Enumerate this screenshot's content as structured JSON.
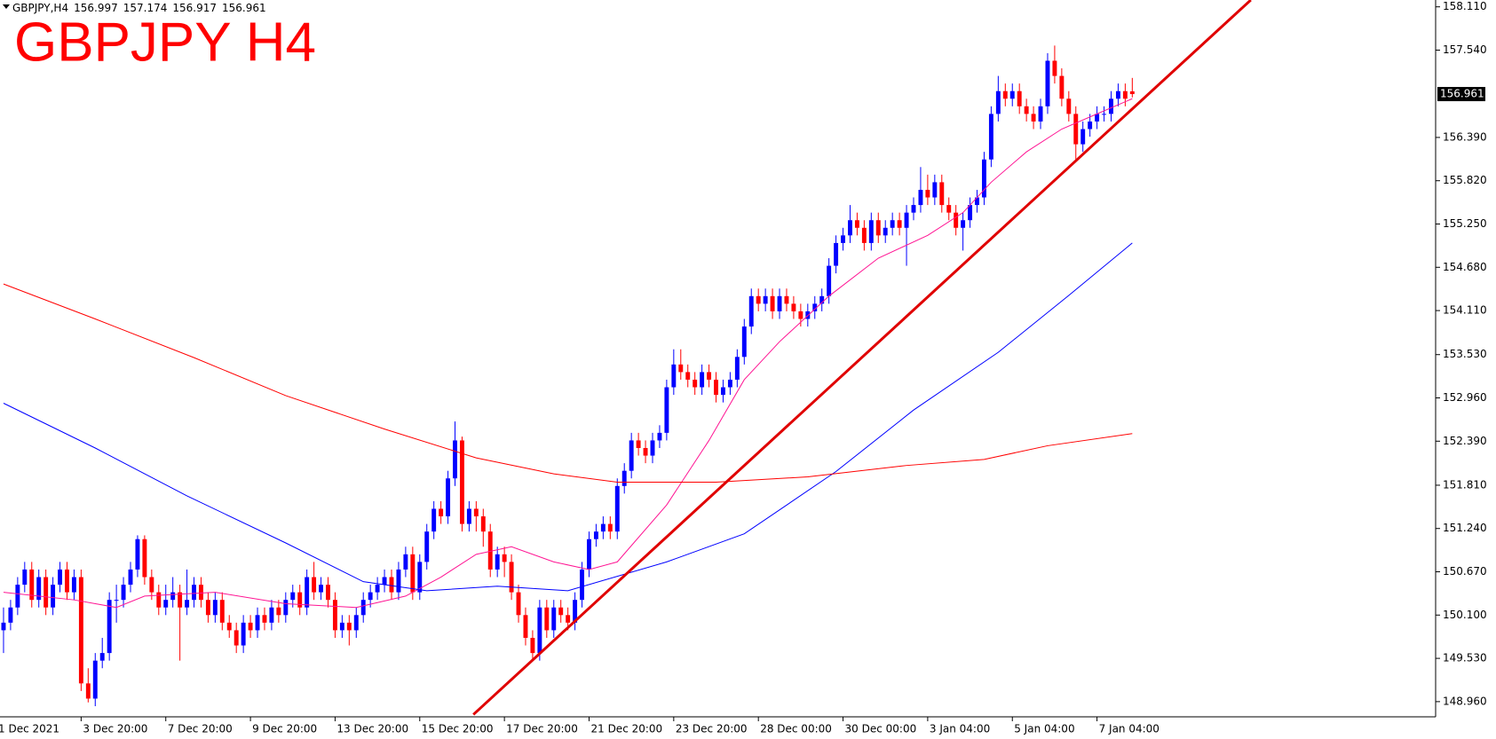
{
  "chart_data": {
    "type": "candlestick",
    "title": "GBPJPY H4",
    "symbol": "GBPJPY,H4",
    "up_color": "#0000ff",
    "down_color": "#ff0000",
    "xlim": [
      -0.5,
      203
    ],
    "ylim": [
      148.76,
      158.2
    ],
    "yticks": [
      {
        "value": 148.96,
        "label": "148.960"
      },
      {
        "value": 149.53,
        "label": "149.530"
      },
      {
        "value": 150.1,
        "label": "150.100"
      },
      {
        "value": 150.67,
        "label": "150.670"
      },
      {
        "value": 151.24,
        "label": "151.240"
      },
      {
        "value": 151.81,
        "label": "151.810"
      },
      {
        "value": 152.39,
        "label": "152.390"
      },
      {
        "value": 152.96,
        "label": "152.960"
      },
      {
        "value": 153.53,
        "label": "153.530"
      },
      {
        "value": 154.11,
        "label": "154.110"
      },
      {
        "value": 154.68,
        "label": "154.680"
      },
      {
        "value": 155.25,
        "label": "155.250"
      },
      {
        "value": 155.82,
        "label": "155.820"
      },
      {
        "value": 156.39,
        "label": "156.390"
      },
      {
        "value": 157.54,
        "label": "157.540"
      },
      {
        "value": 158.11,
        "label": "158.110"
      }
    ],
    "xticks": [
      {
        "value": -1,
        "label": "1 Dec 2021"
      },
      {
        "value": 11,
        "label": "3 Dec 20:00"
      },
      {
        "value": 23,
        "label": "7 Dec 20:00"
      },
      {
        "value": 35,
        "label": "9 Dec 20:00"
      },
      {
        "value": 47,
        "label": "13 Dec 20:00"
      },
      {
        "value": 59,
        "label": "15 Dec 20:00"
      },
      {
        "value": 71,
        "label": "17 Dec 20:00"
      },
      {
        "value": 83,
        "label": "21 Dec 20:00"
      },
      {
        "value": 95,
        "label": "23 Dec 20:00"
      },
      {
        "value": 107,
        "label": "28 Dec 00:00"
      },
      {
        "value": 119,
        "label": "30 Dec 00:00"
      },
      {
        "value": 131,
        "label": "3 Jan 04:00"
      },
      {
        "value": 143,
        "label": "5 Jan 04:00"
      },
      {
        "value": 155,
        "label": "7 Jan 04:00"
      }
    ],
    "ohlc": [
      [
        149.9,
        150.2,
        149.6,
        150.0
      ],
      [
        150.0,
        150.3,
        149.9,
        150.2
      ],
      [
        150.2,
        150.6,
        150.1,
        150.5
      ],
      [
        150.5,
        150.8,
        150.4,
        150.7
      ],
      [
        150.7,
        150.8,
        150.2,
        150.3
      ],
      [
        150.3,
        150.7,
        150.2,
        150.6
      ],
      [
        150.6,
        150.7,
        150.1,
        150.2
      ],
      [
        150.2,
        150.6,
        150.1,
        150.5
      ],
      [
        150.5,
        150.8,
        150.4,
        150.7
      ],
      [
        150.7,
        150.8,
        150.3,
        150.4
      ],
      [
        150.4,
        150.7,
        150.3,
        150.6
      ],
      [
        150.6,
        150.7,
        149.1,
        149.2
      ],
      [
        149.2,
        149.4,
        148.95,
        149.0
      ],
      [
        149.0,
        149.6,
        148.9,
        149.5
      ],
      [
        149.5,
        149.8,
        149.4,
        149.6
      ],
      [
        149.6,
        150.4,
        149.5,
        150.3
      ],
      [
        150.3,
        150.5,
        150.0,
        150.3
      ],
      [
        150.3,
        150.6,
        150.2,
        150.5
      ],
      [
        150.5,
        150.8,
        150.4,
        150.7
      ],
      [
        150.7,
        151.15,
        150.6,
        151.1
      ],
      [
        151.1,
        151.15,
        150.5,
        150.6
      ],
      [
        150.6,
        150.7,
        150.3,
        150.4
      ],
      [
        150.4,
        150.5,
        150.1,
        150.2
      ],
      [
        150.2,
        150.5,
        150.1,
        150.3
      ],
      [
        150.3,
        150.6,
        150.2,
        150.4
      ],
      [
        150.4,
        150.5,
        149.5,
        150.2
      ],
      [
        150.2,
        150.7,
        150.1,
        150.3
      ],
      [
        150.3,
        150.6,
        150.2,
        150.5
      ],
      [
        150.5,
        150.6,
        150.2,
        150.3
      ],
      [
        150.3,
        150.4,
        150.0,
        150.1
      ],
      [
        150.1,
        150.4,
        150.0,
        150.3
      ],
      [
        150.3,
        150.4,
        149.9,
        150.0
      ],
      [
        150.0,
        150.1,
        149.8,
        149.9
      ],
      [
        149.9,
        150.0,
        149.6,
        149.7
      ],
      [
        149.7,
        150.1,
        149.6,
        150.0
      ],
      [
        150.0,
        150.1,
        149.8,
        149.9
      ],
      [
        149.9,
        150.2,
        149.8,
        150.1
      ],
      [
        150.1,
        150.2,
        149.9,
        150.0
      ],
      [
        150.0,
        150.3,
        149.9,
        150.2
      ],
      [
        150.2,
        150.3,
        150.0,
        150.1
      ],
      [
        150.1,
        150.4,
        150.0,
        150.3
      ],
      [
        150.3,
        150.5,
        150.2,
        150.4
      ],
      [
        150.4,
        150.5,
        150.1,
        150.2
      ],
      [
        150.2,
        150.7,
        150.1,
        150.6
      ],
      [
        150.6,
        150.8,
        150.3,
        150.4
      ],
      [
        150.4,
        150.6,
        150.3,
        150.5
      ],
      [
        150.5,
        150.6,
        150.2,
        150.3
      ],
      [
        150.3,
        150.4,
        149.8,
        149.9
      ],
      [
        149.9,
        150.1,
        149.8,
        150.0
      ],
      [
        150.0,
        150.1,
        149.7,
        149.9
      ],
      [
        149.9,
        150.2,
        149.8,
        150.1
      ],
      [
        150.1,
        150.4,
        150.0,
        150.3
      ],
      [
        150.3,
        150.5,
        150.2,
        150.4
      ],
      [
        150.4,
        150.6,
        150.3,
        150.5
      ],
      [
        150.5,
        150.7,
        150.4,
        150.6
      ],
      [
        150.6,
        150.7,
        150.3,
        150.4
      ],
      [
        150.4,
        150.8,
        150.3,
        150.7
      ],
      [
        150.7,
        151.0,
        150.6,
        150.9
      ],
      [
        150.9,
        151.0,
        150.3,
        150.4
      ],
      [
        150.4,
        150.9,
        150.3,
        150.8
      ],
      [
        150.8,
        151.3,
        150.7,
        151.2
      ],
      [
        151.2,
        151.6,
        151.1,
        151.5
      ],
      [
        151.5,
        151.6,
        151.3,
        151.4
      ],
      [
        151.4,
        152.0,
        151.3,
        151.9
      ],
      [
        151.9,
        152.65,
        151.8,
        152.4
      ],
      [
        152.4,
        152.45,
        151.2,
        151.3
      ],
      [
        151.3,
        151.6,
        151.2,
        151.5
      ],
      [
        151.5,
        151.6,
        151.2,
        151.4
      ],
      [
        151.4,
        151.5,
        151.0,
        151.2
      ],
      [
        151.2,
        151.3,
        150.6,
        150.7
      ],
      [
        150.7,
        151.0,
        150.6,
        150.9
      ],
      [
        150.9,
        151.0,
        150.6,
        150.8
      ],
      [
        150.8,
        150.9,
        150.3,
        150.4
      ],
      [
        150.4,
        150.5,
        150.0,
        150.1
      ],
      [
        150.1,
        150.2,
        149.7,
        149.8
      ],
      [
        149.8,
        149.9,
        149.5,
        149.6
      ],
      [
        149.6,
        150.3,
        149.5,
        150.2
      ],
      [
        150.2,
        150.3,
        149.8,
        149.9
      ],
      [
        149.9,
        150.3,
        149.8,
        150.2
      ],
      [
        150.2,
        150.3,
        150.0,
        150.1
      ],
      [
        150.1,
        150.2,
        149.9,
        150.0
      ],
      [
        150.0,
        150.4,
        149.9,
        150.3
      ],
      [
        150.3,
        150.8,
        150.2,
        150.7
      ],
      [
        150.7,
        151.2,
        150.6,
        151.1
      ],
      [
        151.1,
        151.3,
        151.0,
        151.2
      ],
      [
        151.2,
        151.4,
        151.1,
        151.3
      ],
      [
        151.3,
        151.4,
        151.1,
        151.2
      ],
      [
        151.2,
        151.9,
        151.1,
        151.8
      ],
      [
        151.8,
        152.1,
        151.7,
        152.0
      ],
      [
        152.0,
        152.5,
        151.9,
        152.4
      ],
      [
        152.4,
        152.5,
        152.2,
        152.3
      ],
      [
        152.3,
        152.4,
        152.1,
        152.2
      ],
      [
        152.2,
        152.5,
        152.1,
        152.4
      ],
      [
        152.4,
        152.6,
        152.3,
        152.5
      ],
      [
        152.5,
        153.2,
        152.4,
        153.1
      ],
      [
        153.1,
        153.6,
        153.0,
        153.4
      ],
      [
        153.4,
        153.6,
        153.2,
        153.3
      ],
      [
        153.3,
        153.4,
        153.1,
        153.2
      ],
      [
        153.2,
        153.3,
        153.0,
        153.1
      ],
      [
        153.1,
        153.4,
        153.0,
        153.3
      ],
      [
        153.3,
        153.4,
        153.1,
        153.2
      ],
      [
        153.2,
        153.3,
        152.9,
        153.0
      ],
      [
        153.0,
        153.2,
        152.9,
        153.1
      ],
      [
        153.1,
        153.3,
        153.0,
        153.2
      ],
      [
        153.2,
        153.6,
        153.1,
        153.5
      ],
      [
        153.5,
        154.0,
        153.4,
        153.9
      ],
      [
        153.9,
        154.4,
        153.8,
        154.3
      ],
      [
        154.3,
        154.4,
        154.1,
        154.2
      ],
      [
        154.2,
        154.4,
        154.1,
        154.3
      ],
      [
        154.3,
        154.4,
        154.0,
        154.1
      ],
      [
        154.1,
        154.4,
        154.0,
        154.3
      ],
      [
        154.3,
        154.4,
        154.1,
        154.2
      ],
      [
        154.2,
        154.3,
        154.0,
        154.1
      ],
      [
        154.1,
        154.2,
        153.9,
        154.0
      ],
      [
        154.0,
        154.2,
        153.9,
        154.1
      ],
      [
        154.1,
        154.3,
        154.0,
        154.2
      ],
      [
        154.2,
        154.4,
        154.1,
        154.3
      ],
      [
        154.3,
        154.8,
        154.2,
        154.7
      ],
      [
        154.7,
        155.1,
        154.6,
        155.0
      ],
      [
        155.0,
        155.2,
        154.9,
        155.1
      ],
      [
        155.1,
        155.5,
        155.0,
        155.3
      ],
      [
        155.3,
        155.4,
        155.1,
        155.2
      ],
      [
        155.2,
        155.3,
        154.9,
        155.0
      ],
      [
        155.0,
        155.4,
        154.9,
        155.3
      ],
      [
        155.3,
        155.4,
        155.0,
        155.1
      ],
      [
        155.1,
        155.3,
        155.0,
        155.2
      ],
      [
        155.2,
        155.4,
        155.1,
        155.3
      ],
      [
        155.3,
        155.4,
        155.1,
        155.2
      ],
      [
        155.2,
        155.5,
        154.7,
        155.4
      ],
      [
        155.4,
        155.6,
        155.3,
        155.5
      ],
      [
        155.5,
        156.0,
        155.4,
        155.7
      ],
      [
        155.7,
        155.9,
        155.5,
        155.6
      ],
      [
        155.6,
        155.9,
        155.5,
        155.8
      ],
      [
        155.8,
        155.9,
        155.4,
        155.5
      ],
      [
        155.5,
        155.6,
        155.3,
        155.4
      ],
      [
        155.4,
        155.5,
        155.1,
        155.2
      ],
      [
        155.2,
        155.4,
        154.9,
        155.3
      ],
      [
        155.3,
        155.6,
        155.2,
        155.5
      ],
      [
        155.5,
        155.7,
        155.4,
        155.6
      ],
      [
        155.6,
        156.2,
        155.5,
        156.1
      ],
      [
        156.1,
        156.8,
        156.0,
        156.7
      ],
      [
        156.7,
        157.2,
        156.6,
        157.0
      ],
      [
        157.0,
        157.1,
        156.8,
        156.9
      ],
      [
        156.9,
        157.1,
        156.8,
        157.0
      ],
      [
        157.0,
        157.1,
        156.7,
        156.8
      ],
      [
        156.8,
        156.9,
        156.6,
        156.7
      ],
      [
        156.7,
        156.8,
        156.5,
        156.6
      ],
      [
        156.6,
        156.9,
        156.5,
        156.8
      ],
      [
        156.8,
        157.5,
        156.7,
        157.4
      ],
      [
        157.4,
        157.6,
        157.1,
        157.2
      ],
      [
        157.2,
        157.3,
        156.8,
        156.9
      ],
      [
        156.9,
        157.0,
        156.6,
        156.7
      ],
      [
        156.7,
        156.8,
        156.1,
        156.3
      ],
      [
        156.3,
        156.6,
        156.2,
        156.5
      ],
      [
        156.5,
        156.7,
        156.4,
        156.6
      ],
      [
        156.6,
        156.8,
        156.5,
        156.7
      ],
      [
        156.7,
        156.8,
        156.6,
        156.7
      ],
      [
        156.7,
        157.0,
        156.6,
        156.9
      ],
      [
        156.9,
        157.1,
        156.8,
        157.0
      ],
      [
        157.0,
        157.1,
        156.8,
        156.9
      ],
      [
        156.997,
        157.174,
        156.917,
        156.961
      ]
    ],
    "overlays": [
      {
        "color": "#ff1493",
        "width": 1,
        "x": [
          0,
          10,
          16,
          20,
          30,
          40,
          50,
          57,
          62,
          67,
          72,
          78,
          83,
          87,
          94,
          100,
          105,
          110,
          117,
          124,
          131,
          136,
          140,
          145,
          150,
          155,
          160
        ],
        "values": [
          150.4,
          150.3,
          150.2,
          150.35,
          150.4,
          150.25,
          150.2,
          150.35,
          150.6,
          150.9,
          151.0,
          150.8,
          150.7,
          150.8,
          151.55,
          152.4,
          153.2,
          153.7,
          154.3,
          154.8,
          155.1,
          155.4,
          155.8,
          156.2,
          156.5,
          156.7,
          156.9
        ]
      },
      {
        "color": "#0000ff",
        "width": 1,
        "x": [
          0,
          13,
          26,
          40,
          51,
          60,
          70,
          80,
          94,
          105,
          118,
          129,
          141,
          151,
          160
        ],
        "values": [
          152.89,
          152.3,
          151.67,
          151.05,
          150.54,
          150.42,
          150.48,
          150.42,
          150.8,
          151.17,
          151.99,
          152.8,
          153.56,
          154.31,
          155.0
        ]
      },
      {
        "color": "#ff0000",
        "width": 1,
        "x": [
          0,
          13,
          27,
          40,
          54,
          67,
          78,
          87,
          101,
          114,
          128,
          139,
          148,
          160
        ],
        "values": [
          154.46,
          154.0,
          153.49,
          152.99,
          152.55,
          152.17,
          151.96,
          151.85,
          151.85,
          151.92,
          152.07,
          152.15,
          152.33,
          152.49
        ]
      },
      {
        "color": "#e00000",
        "width": 3,
        "x": [
          66.6,
          176.8
        ],
        "values": [
          148.79,
          158.2
        ]
      }
    ]
  }
}
